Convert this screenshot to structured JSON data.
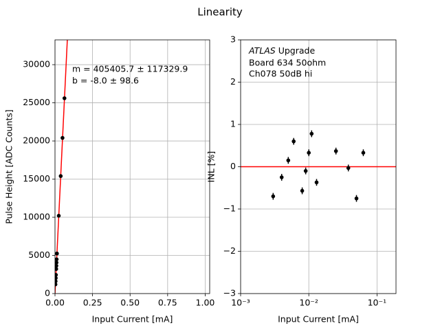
{
  "title": "Linearity",
  "chart_data": [
    {
      "type": "scatter",
      "xlabel": "Input Current [mA]",
      "ylabel": "Pulse Height [ADC Counts]",
      "x": [
        0.003,
        0.004,
        0.005,
        0.006,
        0.008,
        0.009,
        0.01,
        0.011,
        0.013,
        0.025,
        0.038,
        0.05,
        0.063
      ],
      "values": [
        1200,
        1610,
        2030,
        2450,
        3220,
        3640,
        4060,
        4490,
        5250,
        10200,
        15400,
        20400,
        25600
      ],
      "color": "#000000",
      "xlim": [
        0,
        1.03
      ],
      "ylim": [
        0,
        33250
      ],
      "xticks": [
        {
          "value": 0,
          "label": "0.00"
        },
        {
          "value": 0.25,
          "label": "0.25"
        },
        {
          "value": 0.5,
          "label": "0.50"
        },
        {
          "value": 0.75,
          "label": "0.75"
        },
        {
          "value": 1,
          "label": "1.00"
        }
      ],
      "yticks": [
        0,
        5000,
        10000,
        15000,
        20000,
        25000,
        30000
      ],
      "grid": true,
      "fit": {
        "slope": 405405.7,
        "intercept": -8.0,
        "color": "#ff0000"
      },
      "annotation": [
        "m = 405405.7 ± 117329.9",
        " b = -8.0 ± 98.6"
      ]
    },
    {
      "type": "scatter",
      "xlabel": "Input Current [mA]",
      "ylabel": "INL [%]",
      "x": [
        0.003,
        0.004,
        0.005,
        0.006,
        0.008,
        0.009,
        0.01,
        0.011,
        0.013,
        0.025,
        0.038,
        0.05,
        0.063
      ],
      "values": [
        -0.7,
        -0.25,
        0.15,
        0.6,
        -0.57,
        -0.1,
        0.33,
        0.78,
        -0.37,
        0.37,
        -0.03,
        -0.75,
        0.33
      ],
      "errors": [
        0.08,
        0.08,
        0.08,
        0.08,
        0.08,
        0.08,
        0.08,
        0.08,
        0.08,
        0.08,
        0.08,
        0.08,
        0.08
      ],
      "color": "#000000",
      "xlog": true,
      "xlim": [
        0.001,
        0.19
      ],
      "ylim": [
        -3,
        3
      ],
      "xticks": [
        {
          "value": 0.001,
          "label": "10⁻³"
        },
        {
          "value": 0.01,
          "label": "10⁻²"
        },
        {
          "value": 0.1,
          "label": "10⁻¹"
        }
      ],
      "yticks": [
        {
          "value": -3,
          "label": "−3"
        },
        {
          "value": -2,
          "label": "−2"
        },
        {
          "value": -1,
          "label": "−1"
        },
        0,
        1,
        2,
        3
      ],
      "grid": true,
      "reference_line": {
        "value": 0,
        "color": "#ff0000"
      },
      "annotation_italic": "ATLAS",
      "annotation": [
        " Upgrade",
        " Board 634 50ohm",
        " Ch078 50dB hi"
      ]
    }
  ]
}
